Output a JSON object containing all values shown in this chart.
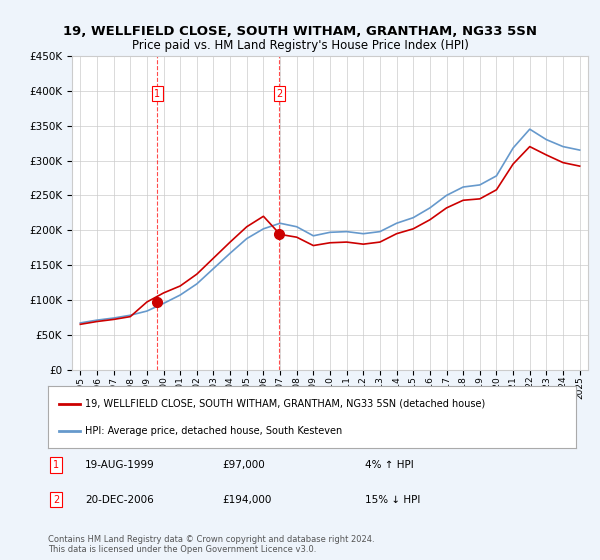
{
  "title": "19, WELLFIELD CLOSE, SOUTH WITHAM, GRANTHAM, NG33 5SN",
  "subtitle": "Price paid vs. HM Land Registry's House Price Index (HPI)",
  "hpi_label": "HPI: Average price, detached house, South Kesteven",
  "property_label": "19, WELLFIELD CLOSE, SOUTH WITHAM, GRANTHAM, NG33 5SN (detached house)",
  "footnote": "Contains HM Land Registry data © Crown copyright and database right 2024.\nThis data is licensed under the Open Government Licence v3.0.",
  "sale_dates": [
    "1999-08-19",
    "2006-12-20"
  ],
  "sale_prices": [
    97000,
    194000
  ],
  "sale_labels": [
    "1",
    "2"
  ],
  "sale_annotations": [
    {
      "label": "1",
      "date": "19-AUG-1999",
      "price": "£97,000",
      "pct": "4%",
      "dir": "↑",
      "text": "HPI"
    },
    {
      "label": "2",
      "date": "20-DEC-2006",
      "price": "£194,000",
      "pct": "15%",
      "dir": "↓",
      "text": "HPI"
    }
  ],
  "property_color": "#cc0000",
  "hpi_color": "#6699cc",
  "background_color": "#eef4fb",
  "plot_bg": "#ffffff",
  "ylim": [
    0,
    450000
  ],
  "yticks": [
    0,
    50000,
    100000,
    150000,
    200000,
    250000,
    300000,
    350000,
    400000,
    450000
  ],
  "years": [
    1995,
    1996,
    1997,
    1998,
    1999,
    2000,
    2001,
    2002,
    2003,
    2004,
    2005,
    2006,
    2007,
    2008,
    2009,
    2010,
    2011,
    2012,
    2013,
    2014,
    2015,
    2016,
    2017,
    2018,
    2019,
    2020,
    2021,
    2022,
    2023,
    2024,
    2025
  ],
  "hpi_values": [
    67000,
    71000,
    74000,
    78000,
    84000,
    95000,
    107000,
    123000,
    145000,
    167000,
    188000,
    202000,
    210000,
    205000,
    192000,
    197000,
    198000,
    195000,
    198000,
    210000,
    218000,
    232000,
    250000,
    262000,
    265000,
    278000,
    318000,
    345000,
    330000,
    320000,
    315000
  ],
  "property_values": [
    65000,
    69000,
    72000,
    76000,
    97000,
    110000,
    120000,
    137000,
    160000,
    183000,
    205000,
    220000,
    194000,
    190000,
    178000,
    182000,
    183000,
    180000,
    183000,
    195000,
    202000,
    215000,
    232000,
    243000,
    245000,
    258000,
    295000,
    320000,
    308000,
    297000,
    292000
  ]
}
